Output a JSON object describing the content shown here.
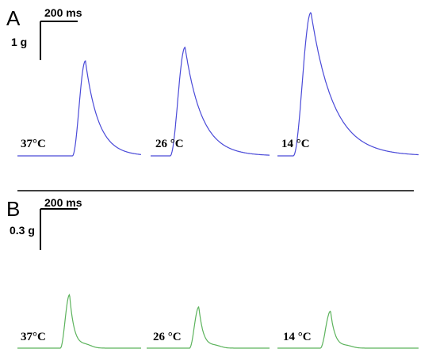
{
  "chart_data": [
    {
      "type": "line",
      "panel": "A",
      "color": "#4a4ad8",
      "scale_bar": {
        "time_label": "200 ms",
        "amplitude_label": "1 g"
      },
      "series": [
        {
          "label": "37°C",
          "baseline": 0,
          "peak": 2.45,
          "rise_ms": 70,
          "decay_tau_ms": 70
        },
        {
          "label": "26 °C",
          "baseline": 0,
          "peak": 2.8,
          "rise_ms": 80,
          "decay_tau_ms": 90
        },
        {
          "label": "14 °C",
          "baseline": 0,
          "peak": 3.7,
          "rise_ms": 95,
          "decay_tau_ms": 120
        }
      ]
    },
    {
      "type": "line",
      "panel": "B",
      "color": "#5cb35c",
      "scale_bar": {
        "time_label": "200 ms",
        "amplitude_label": "0.3 g"
      },
      "series": [
        {
          "label": "37°C",
          "baseline": 0,
          "peak": 0.39,
          "rise_ms": 50,
          "decay_tau_ms": 25
        },
        {
          "label": "26 °C",
          "baseline": 0,
          "peak": 0.3,
          "rise_ms": 50,
          "decay_tau_ms": 25
        },
        {
          "label": "14 °C",
          "baseline": 0,
          "peak": 0.27,
          "rise_ms": 55,
          "decay_tau_ms": 25
        }
      ]
    }
  ]
}
